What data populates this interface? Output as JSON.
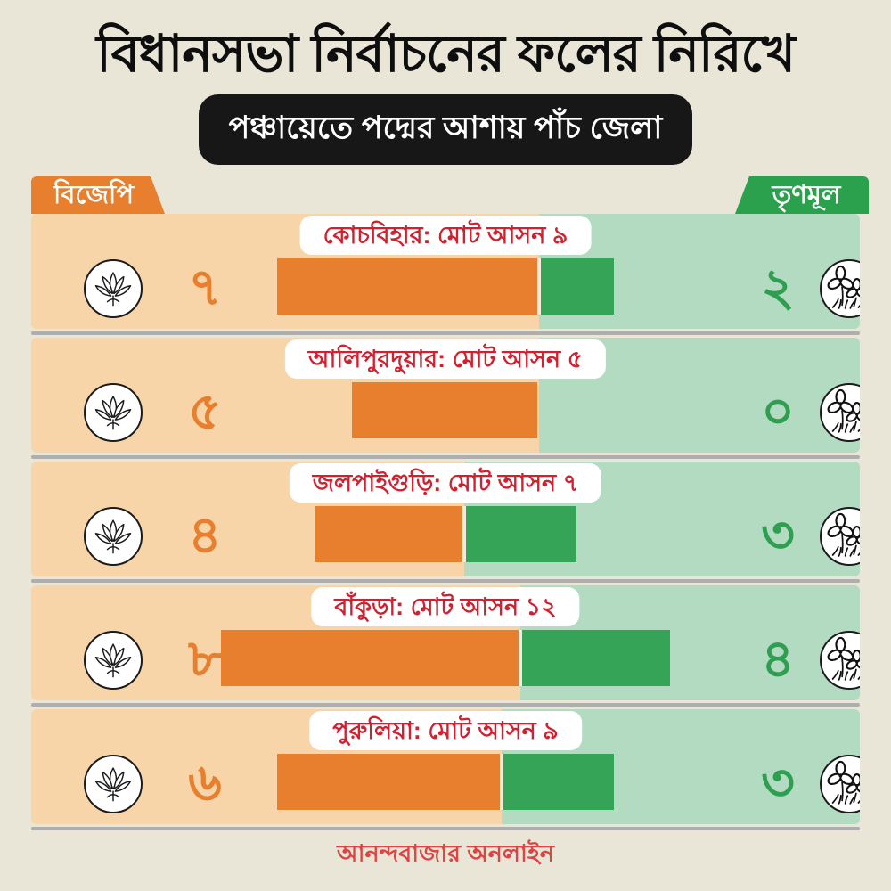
{
  "page": {
    "title": "বিধানসভা নির্বাচনের ফলের নিরিখে",
    "subtitle": "পঞ্চায়েতে পদ্মের আশায় পাঁচ জেলা",
    "footer": "আনন্দবাজার অনলাইন"
  },
  "legend": {
    "bjp_label": "বিজেপি",
    "tmc_label": "তৃণমূল"
  },
  "icons": {
    "bjp": "lotus-icon",
    "tmc": "twin-flowers-icon"
  },
  "colors": {
    "background": "#e9e6d8",
    "bjp_accent": "#e77f2e",
    "bjp_light": "#f7d5a8",
    "tmc_accent": "#36a457",
    "tmc_tag": "#2ba14d",
    "tmc_light": "#b2dbc2",
    "label_red": "#d2202f",
    "footer_red": "#e04343",
    "subtitle_bg": "#171717",
    "separator_gray": "#aeaeae"
  },
  "rows": [
    {
      "label": "কোচবিহার: মোট আসন ৯",
      "bjp_display": "৭",
      "tmc_display": "২",
      "bjp": 7,
      "tmc": 2,
      "total": 9
    },
    {
      "label": "আলিপুরদুয়ার: মোট আসন ৫",
      "bjp_display": "৫",
      "tmc_display": "০",
      "bjp": 5,
      "tmc": 0,
      "total": 5
    },
    {
      "label": "জলপাইগুড়ি: মোট আসন ৭",
      "bjp_display": "৪",
      "tmc_display": "৩",
      "bjp": 4,
      "tmc": 3,
      "total": 7
    },
    {
      "label": "বাঁকুড়া: মোট আসন ১২",
      "bjp_display": "৮",
      "tmc_display": "৪",
      "bjp": 8,
      "tmc": 4,
      "total": 12
    },
    {
      "label": "পুরুলিয়া: মোট আসন ৯",
      "bjp_display": "৬",
      "tmc_display": "৩",
      "bjp": 6,
      "tmc": 3,
      "total": 9
    }
  ],
  "chart_data": {
    "type": "bar",
    "title": "বিধানসভা নির্বাচনের ফলের নিরিখে",
    "subtitle": "পঞ্চায়েতে পদ্মের আশায় পাঁচ জেলা",
    "categories": [
      "কোচবিহার",
      "আলিপুরদুয়ার",
      "জলপাইগুড়ি",
      "বাঁকুড়া",
      "পুরুলিয়া"
    ],
    "series": [
      {
        "name": "বিজেপি",
        "values": [
          7,
          5,
          4,
          8,
          6
        ],
        "color": "#e77f2e"
      },
      {
        "name": "তৃণমূল",
        "values": [
          2,
          0,
          3,
          4,
          3
        ],
        "color": "#36a457"
      }
    ],
    "totals": [
      9,
      5,
      7,
      12,
      9
    ],
    "unit_label": "মোট আসন",
    "layout": "horizontal-diverging, bars centered per row, 1 seat = 42px",
    "legend_position": "top corners",
    "source": "আনন্দবাজার অনলাইন"
  }
}
